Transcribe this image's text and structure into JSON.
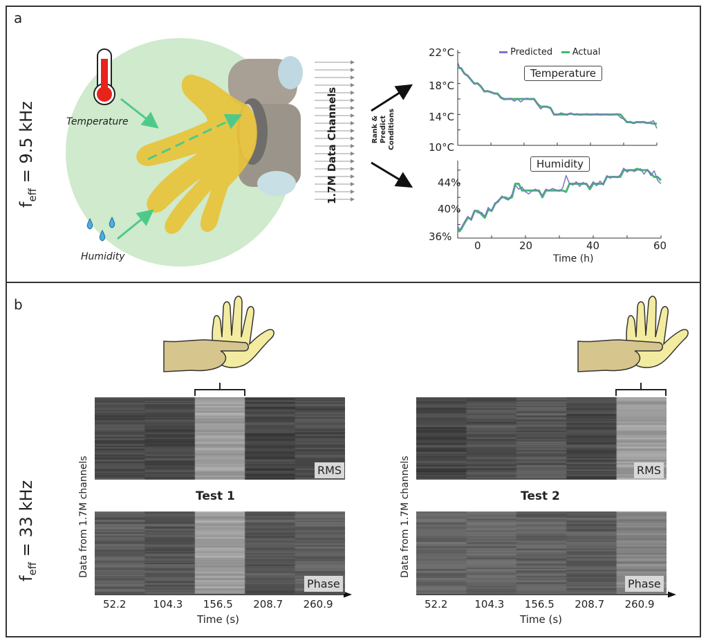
{
  "panel_a": {
    "label": "a",
    "freq_prefix": "f",
    "freq_sub": "eff",
    "freq_value": " = 9.5 kHz",
    "illustration": {
      "temperature_label": "Temperature",
      "humidity_label": "Humidity",
      "circle_color": "#cfeacc",
      "arrow_color": "#4fc98a",
      "thermometer_color": "#e8231b",
      "droplet_color": "#49aee6",
      "glove_color": "#e8c23a"
    },
    "channels_label": "1.7M Data Channels",
    "rank_label_lines": [
      "Rank &",
      "Predict",
      "Conditions"
    ]
  },
  "chart_data": [
    {
      "type": "line",
      "title": "Temperature",
      "legend": [
        "Predicted",
        "Actual"
      ],
      "legend_placement": "top",
      "colors": {
        "Predicted": "#7a74c4",
        "Actual": "#43b86f"
      },
      "ylabel": "",
      "ytick_labels": [
        "22°C",
        "18°C",
        "14°C",
        "10°C"
      ],
      "yticks": [
        22,
        18,
        14,
        10
      ],
      "ylim": [
        10,
        22
      ],
      "xlim": [
        0,
        60
      ],
      "x": [
        0,
        0.5,
        1,
        2,
        3,
        4,
        5,
        6,
        7,
        8,
        9,
        10,
        11,
        12,
        13,
        14,
        15,
        16,
        17,
        18,
        19,
        20,
        21,
        22,
        23,
        24,
        25,
        26,
        27,
        28,
        29,
        30,
        31,
        32,
        33,
        34,
        35,
        36,
        37,
        38,
        39,
        40,
        41,
        42,
        43,
        44,
        45,
        46,
        47,
        48,
        49,
        50,
        51,
        52,
        53,
        54,
        55,
        56,
        57,
        58,
        59,
        60
      ],
      "series": [
        {
          "name": "Actual",
          "values": [
            20.3,
            20.0,
            20.0,
            19.3,
            19.0,
            18.5,
            18.0,
            18.0,
            17.6,
            17.0,
            17.0,
            16.9,
            16.7,
            16.7,
            16.2,
            16.0,
            16.0,
            16.0,
            16.0,
            16.0,
            16.0,
            16.0,
            16.0,
            16.0,
            16.0,
            15.4,
            15.0,
            15.0,
            15.0,
            14.8,
            14.0,
            14.0,
            14.0,
            14.0,
            14.0,
            14.1,
            14.0,
            14.0,
            14.0,
            14.0,
            14.0,
            14.0,
            14.0,
            14.0,
            14.0,
            14.0,
            14.0,
            14.0,
            14.0,
            14.0,
            14.0,
            13.5,
            13.0,
            13.0,
            12.9,
            13.0,
            13.0,
            13.0,
            12.9,
            12.9,
            12.8,
            12.8
          ]
        },
        {
          "name": "Predicted",
          "values": [
            20.8,
            20.1,
            19.9,
            19.2,
            19.1,
            18.4,
            17.9,
            18.1,
            17.7,
            16.9,
            17.1,
            16.8,
            16.8,
            16.6,
            16.1,
            15.9,
            16.0,
            16.1,
            15.7,
            16.0,
            15.6,
            16.0,
            16.1,
            15.9,
            16.0,
            15.3,
            14.7,
            15.1,
            14.9,
            14.9,
            14.0,
            13.9,
            14.2,
            14.1,
            13.9,
            14.2,
            14.0,
            14.1,
            13.9,
            14.0,
            14.1,
            13.9,
            14.0,
            14.1,
            13.9,
            14.0,
            14.0,
            13.9,
            14.0,
            14.1,
            13.6,
            13.4,
            13.0,
            13.1,
            12.8,
            13.1,
            12.9,
            13.1,
            12.9,
            13.0,
            13.2,
            12.2
          ]
        }
      ]
    },
    {
      "type": "line",
      "title": "Humidity",
      "xlabel": "Time (h)",
      "ylabel": "",
      "ytick_labels": [
        "44%",
        "40%",
        "36%"
      ],
      "yticks": [
        44,
        40,
        36
      ],
      "ylim": [
        36,
        47
      ],
      "xticks": [
        0,
        20,
        40,
        60
      ],
      "xtick_labels": [
        "0",
        "20",
        "40",
        "60"
      ],
      "xlim": [
        0,
        60
      ],
      "x": [
        0,
        0.5,
        1,
        2,
        3,
        4,
        5,
        6,
        7,
        8,
        9,
        10,
        11,
        12,
        13,
        14,
        15,
        16,
        17,
        18,
        19,
        20,
        21,
        22,
        23,
        24,
        25,
        26,
        27,
        28,
        29,
        30,
        31,
        32,
        33,
        34,
        35,
        36,
        37,
        38,
        39,
        40,
        41,
        42,
        43,
        44,
        45,
        46,
        47,
        48,
        49,
        50,
        51,
        52,
        53,
        54,
        55,
        56,
        57,
        58,
        59,
        60
      ],
      "series": [
        {
          "name": "Actual",
          "values": [
            37.2,
            37.0,
            37.3,
            38.2,
            39.0,
            38.8,
            40.0,
            40.0,
            39.5,
            39.0,
            40.2,
            40.0,
            41.0,
            41.5,
            42.0,
            42.0,
            41.8,
            42.0,
            44.0,
            44.0,
            43.0,
            43.0,
            43.0,
            43.0,
            43.0,
            43.0,
            42.0,
            43.0,
            43.0,
            43.0,
            43.0,
            43.0,
            43.0,
            42.8,
            44.0,
            44.0,
            44.0,
            44.0,
            44.0,
            44.0,
            43.2,
            44.0,
            44.0,
            44.0,
            44.0,
            45.0,
            45.0,
            45.0,
            45.0,
            45.0,
            46.0,
            46.0,
            46.0,
            46.0,
            46.2,
            46.0,
            46.0,
            46.0,
            45.5,
            45.0,
            45.0,
            44.5
          ]
        },
        {
          "name": "Predicted",
          "values": [
            37.8,
            37.2,
            37.5,
            38.4,
            39.2,
            38.6,
            40.1,
            39.7,
            39.8,
            39.2,
            40.5,
            40.0,
            41.2,
            41.3,
            42.2,
            41.8,
            41.6,
            42.4,
            43.8,
            43.2,
            43.5,
            42.8,
            42.5,
            43.0,
            43.2,
            42.8,
            42.3,
            43.2,
            43.0,
            43.3,
            43.1,
            42.9,
            43.4,
            45.2,
            44.0,
            43.8,
            44.3,
            43.6,
            44.2,
            43.8,
            43.5,
            44.3,
            43.7,
            44.4,
            43.8,
            45.2,
            44.8,
            45.1,
            44.9,
            45.3,
            46.3,
            45.7,
            46.1,
            45.8,
            46.0,
            46.2,
            45.4,
            46.1,
            45.2,
            45.9,
            44.5,
            44.0
          ]
        }
      ]
    },
    {
      "type": "heatmap",
      "title": "Test 1",
      "ylabel": "Data from 1.7M channels",
      "xlabel": "Time (s)",
      "xtick_labels": [
        "52.2",
        "104.3",
        "156.5",
        "208.7",
        "260.9"
      ],
      "rows": [
        {
          "name": "RMS",
          "mean_brightness": [
            0.3,
            0.28,
            0.62,
            0.27,
            0.3
          ]
        },
        {
          "name": "Phase",
          "mean_brightness": [
            0.36,
            0.34,
            0.62,
            0.34,
            0.38
          ]
        }
      ],
      "highlighted_column": "156.5"
    },
    {
      "type": "heatmap",
      "title": "Test 2",
      "ylabel": "Data from 1.7M channels",
      "xlabel": "Time (s)",
      "xtick_labels": [
        "52.2",
        "104.3",
        "156.5",
        "208.7",
        "260.9"
      ],
      "rows": [
        {
          "name": "RMS",
          "mean_brightness": [
            0.27,
            0.32,
            0.34,
            0.28,
            0.62
          ]
        },
        {
          "name": "Phase",
          "mean_brightness": [
            0.4,
            0.4,
            0.38,
            0.36,
            0.52
          ]
        }
      ],
      "highlighted_column": "260.9"
    }
  ],
  "panel_b": {
    "label": "b",
    "freq_prefix": "f",
    "freq_sub": "eff",
    "freq_value": " = 33 kHz",
    "test1_title": "Test 1",
    "test2_title": "Test 2",
    "rms_tag": "RMS",
    "phase_tag": "Phase",
    "ylabel": "Data from 1.7M channels",
    "xlabel": "Time (s)",
    "xtick_labels": [
      "52.2",
      "104.3",
      "156.5",
      "208.7",
      "260.9"
    ],
    "hand_colors": {
      "touching_hand": "#d7c58e",
      "glove": "#f3eba0"
    }
  }
}
